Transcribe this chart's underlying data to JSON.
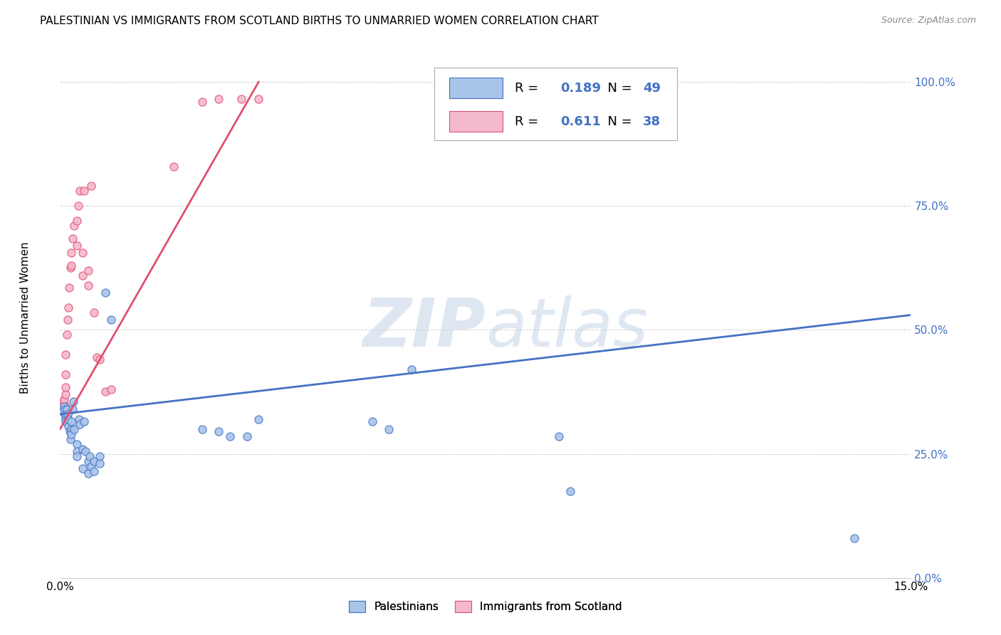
{
  "title": "PALESTINIAN VS IMMIGRANTS FROM SCOTLAND BIRTHS TO UNMARRIED WOMEN CORRELATION CHART",
  "source": "Source: ZipAtlas.com",
  "ylabel_label": "Births to Unmarried Women",
  "R_blue": 0.189,
  "N_blue": 49,
  "R_pink": 0.611,
  "N_pink": 38,
  "blue_color": "#a8c4e8",
  "pink_color": "#f4b8cc",
  "blue_line_color": "#4472c4",
  "pink_line_color": "#e05070",
  "xlim": [
    0.0,
    0.15
  ],
  "ylim": [
    0.0,
    1.05
  ],
  "blue_scatter_x": [
    0.0005,
    0.0007,
    0.0008,
    0.001,
    0.001,
    0.001,
    0.001,
    0.0012,
    0.0013,
    0.0015,
    0.0015,
    0.0017,
    0.0018,
    0.002,
    0.002,
    0.002,
    0.0022,
    0.0023,
    0.0025,
    0.003,
    0.003,
    0.003,
    0.0033,
    0.0035,
    0.004,
    0.004,
    0.0042,
    0.0045,
    0.005,
    0.005,
    0.0052,
    0.0055,
    0.006,
    0.006,
    0.007,
    0.007,
    0.008,
    0.009,
    0.025,
    0.028,
    0.03,
    0.033,
    0.035,
    0.055,
    0.058,
    0.062,
    0.088,
    0.09,
    0.14
  ],
  "blue_scatter_y": [
    0.335,
    0.345,
    0.34,
    0.33,
    0.325,
    0.32,
    0.315,
    0.34,
    0.33,
    0.305,
    0.32,
    0.295,
    0.28,
    0.315,
    0.3,
    0.29,
    0.34,
    0.355,
    0.3,
    0.27,
    0.255,
    0.245,
    0.32,
    0.31,
    0.26,
    0.22,
    0.315,
    0.255,
    0.235,
    0.21,
    0.245,
    0.225,
    0.235,
    0.215,
    0.245,
    0.23,
    0.575,
    0.52,
    0.3,
    0.295,
    0.285,
    0.285,
    0.32,
    0.315,
    0.3,
    0.42,
    0.285,
    0.175,
    0.08
  ],
  "pink_scatter_x": [
    0.0005,
    0.0006,
    0.0007,
    0.0008,
    0.0009,
    0.001,
    0.001,
    0.001,
    0.001,
    0.0012,
    0.0013,
    0.0015,
    0.0016,
    0.0018,
    0.002,
    0.002,
    0.0022,
    0.0025,
    0.003,
    0.003,
    0.0032,
    0.0035,
    0.004,
    0.004,
    0.0042,
    0.005,
    0.005,
    0.0055,
    0.006,
    0.0065,
    0.007,
    0.008,
    0.009,
    0.02,
    0.025,
    0.028,
    0.032,
    0.035
  ],
  "pink_scatter_y": [
    0.345,
    0.355,
    0.36,
    0.34,
    0.37,
    0.345,
    0.385,
    0.41,
    0.45,
    0.49,
    0.52,
    0.545,
    0.585,
    0.625,
    0.63,
    0.655,
    0.685,
    0.71,
    0.67,
    0.72,
    0.75,
    0.78,
    0.61,
    0.655,
    0.78,
    0.59,
    0.62,
    0.79,
    0.535,
    0.445,
    0.44,
    0.375,
    0.38,
    0.83,
    0.96,
    0.965,
    0.965,
    0.965
  ]
}
